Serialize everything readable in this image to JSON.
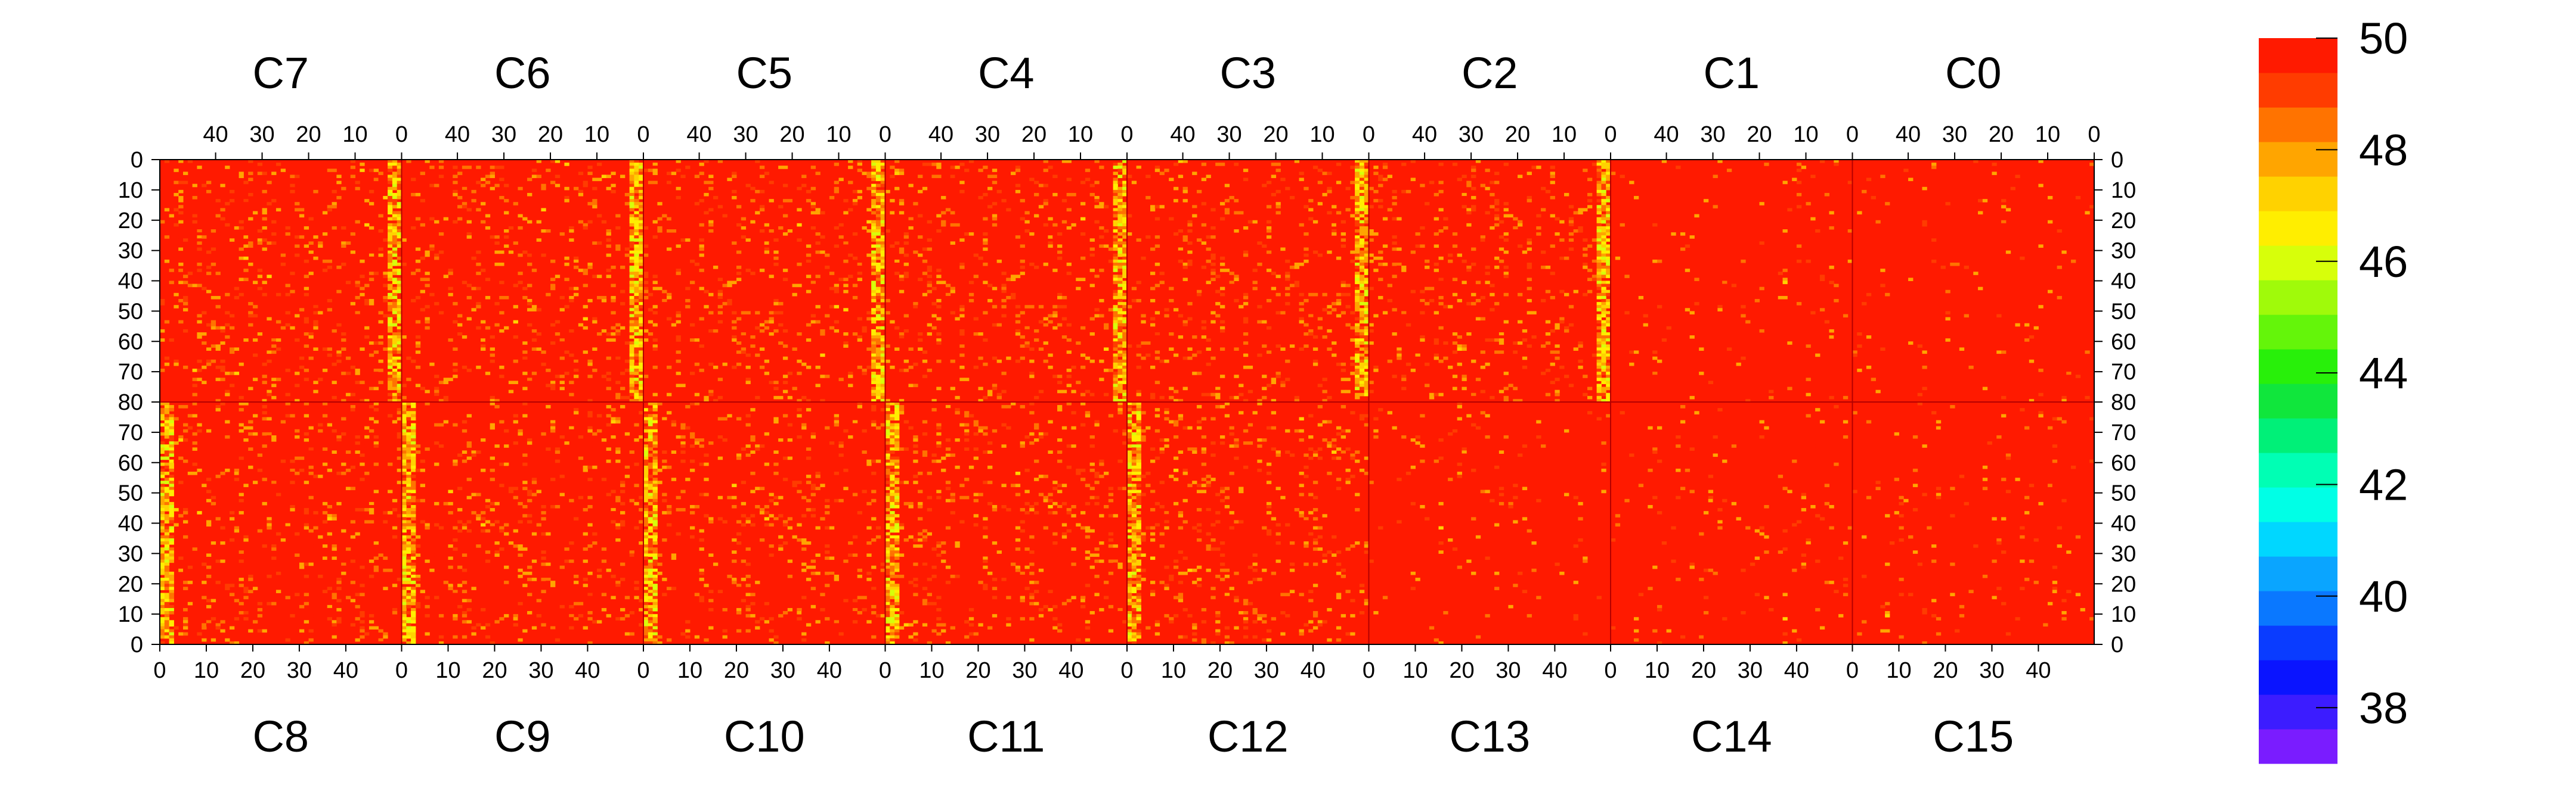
{
  "chart_data": {
    "type": "heatmap",
    "title": "",
    "top_chips": [
      "C7",
      "C6",
      "C5",
      "C4",
      "C3",
      "C2",
      "C1",
      "C0"
    ],
    "bottom_chips": [
      "C8",
      "C9",
      "C10",
      "C11",
      "C12",
      "C13",
      "C14",
      "C15"
    ],
    "columns_per_chip": 52,
    "rows_per_half": 80,
    "top_x_ticks": [
      40,
      30,
      20,
      10,
      0
    ],
    "bottom_x_ticks": [
      0,
      10,
      20,
      30,
      40
    ],
    "y_ticks_top_half": [
      0,
      10,
      20,
      30,
      40,
      50,
      60,
      70,
      80
    ],
    "y_ticks_bottom_half": [
      80,
      70,
      60,
      50,
      40,
      30,
      20,
      10,
      0
    ],
    "z_range": [
      37,
      50
    ],
    "colorbar_ticks": [
      50,
      48,
      46,
      44,
      42,
      40,
      38
    ],
    "colorbar_colors": [
      "#7a1cff",
      "#3c1cff",
      "#0a14ff",
      "#0a3cff",
      "#0a78ff",
      "#0aa5ff",
      "#00d7ff",
      "#00ffe6",
      "#00ffb4",
      "#00f078",
      "#10e63c",
      "#28f00a",
      "#64f50a",
      "#a0fa0a",
      "#d7ff0a",
      "#ffee00",
      "#ffd200",
      "#ffa500",
      "#ff7300",
      "#ff3c00",
      "#ff1a00"
    ],
    "dominant_value": 50,
    "typical_range": [
      46,
      50
    ],
    "notes": []
  }
}
